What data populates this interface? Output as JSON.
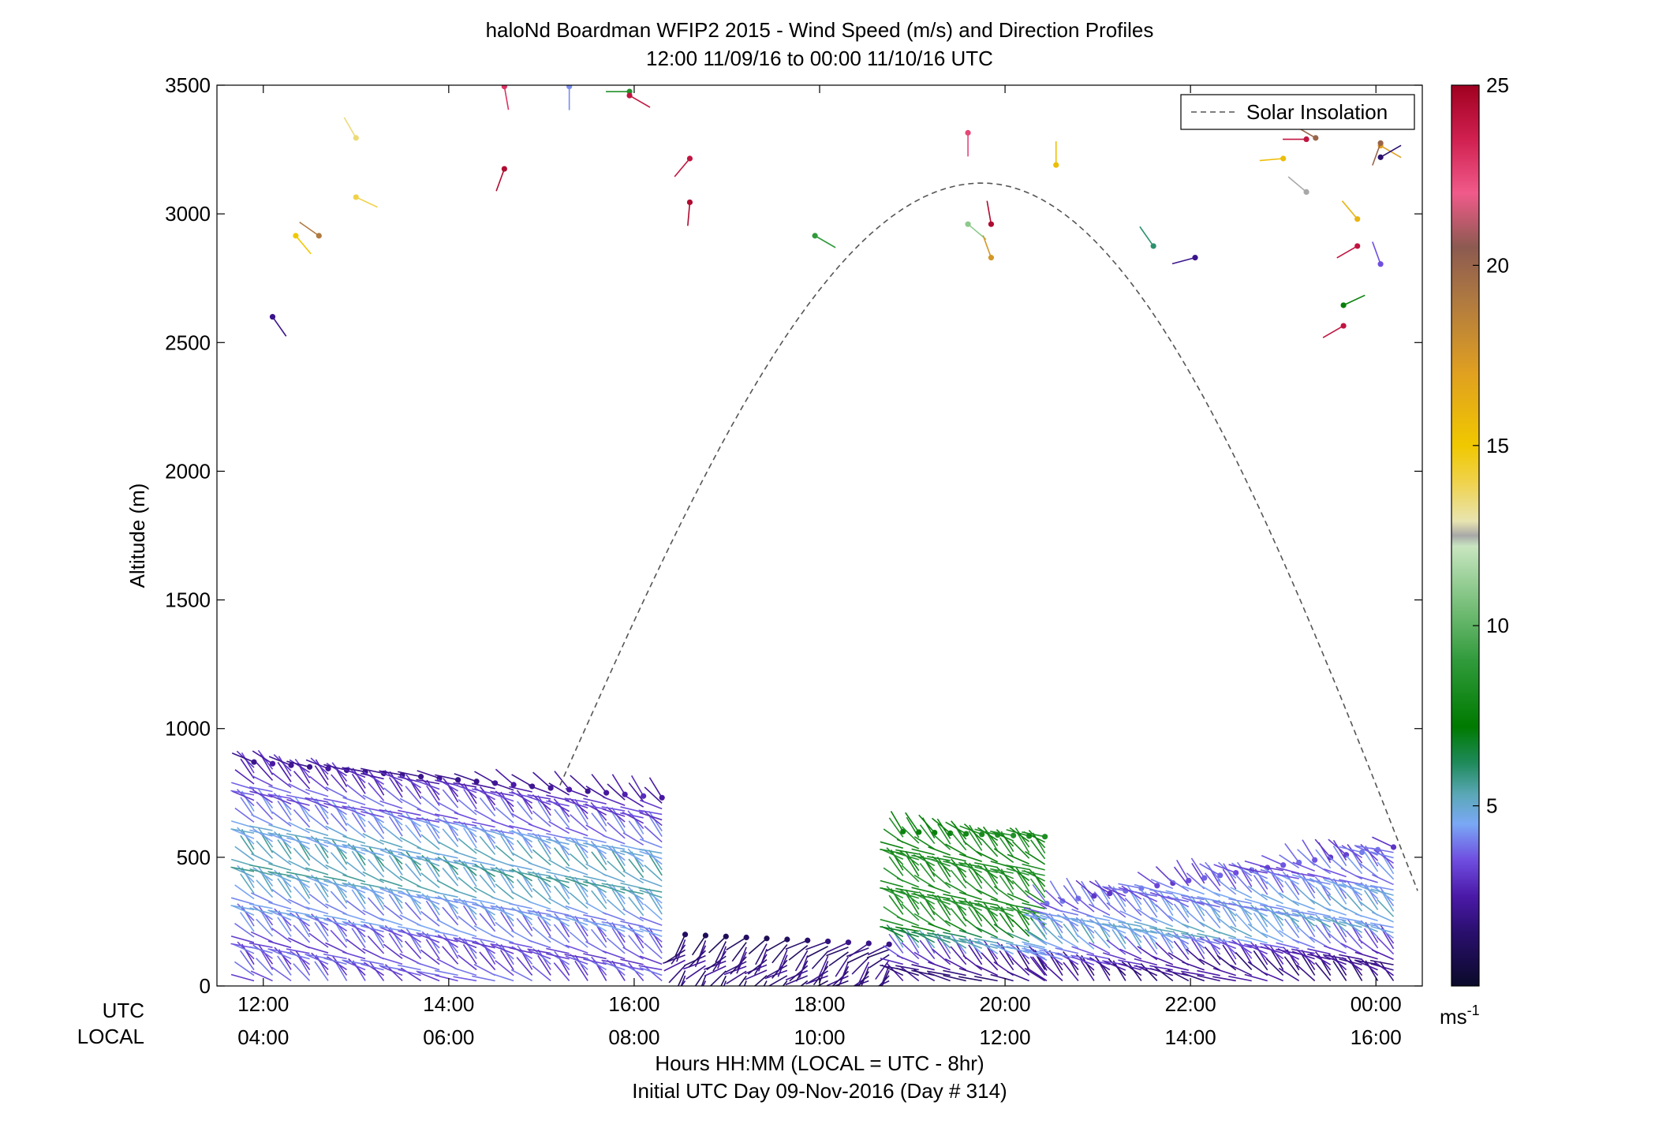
{
  "chart_data": {
    "type": "scatter",
    "title": "haloNd Boardman WFIP2 2015 - Wind Speed (m/s) and Direction Profiles",
    "subtitle": "12:00 11/09/16 to 00:00 11/10/16  UTC",
    "ylabel": "Altitude (m)",
    "xlabel": "Hours HH:MM  (LOCAL = UTC - 8hr)",
    "xlabel2": "Initial UTC Day 09-Nov-2016 (Day # 314)",
    "utc_row_label": "UTC",
    "local_row_label": "LOCAL",
    "xlim_hours": [
      11.5,
      24.5
    ],
    "ylim": [
      0,
      3500
    ],
    "yticks": [
      {
        "value": 0,
        "label": "0"
      },
      {
        "value": 500,
        "label": "500"
      },
      {
        "value": 1000,
        "label": "1000"
      },
      {
        "value": 1500,
        "label": "1500"
      },
      {
        "value": 2000,
        "label": "2000"
      },
      {
        "value": 2500,
        "label": "2500"
      },
      {
        "value": 3000,
        "label": "3000"
      },
      {
        "value": 3500,
        "label": "3500"
      }
    ],
    "xticks": [
      {
        "hour": 12,
        "utc": "12:00",
        "local": "04:00"
      },
      {
        "hour": 14,
        "utc": "14:00",
        "local": "06:00"
      },
      {
        "hour": 16,
        "utc": "16:00",
        "local": "08:00"
      },
      {
        "hour": 18,
        "utc": "18:00",
        "local": "10:00"
      },
      {
        "hour": 20,
        "utc": "20:00",
        "local": "12:00"
      },
      {
        "hour": 22,
        "utc": "22:00",
        "local": "14:00"
      },
      {
        "hour": 24,
        "utc": "00:00",
        "local": "16:00"
      }
    ],
    "legend": {
      "label": "Solar Insolation",
      "position": "top-right"
    },
    "solar_insolation_curve": {
      "start_hour": 15.2,
      "start_alt": 780,
      "peak_hour": 19.75,
      "peak_alt": 3120,
      "end_hour": 24.45,
      "end_alt": 370
    },
    "colorbar": {
      "min": 0,
      "max": 25,
      "ticks": [
        5,
        10,
        15,
        20,
        25
      ],
      "unit": "ms",
      "unit_sup": "-1",
      "stops": [
        {
          "v": 0,
          "c": "#0a0a2a"
        },
        {
          "v": 1.5,
          "c": "#2a0f6e"
        },
        {
          "v": 2.5,
          "c": "#4b19a8"
        },
        {
          "v": 3.5,
          "c": "#6f4ee0"
        },
        {
          "v": 4.5,
          "c": "#7aa8f5"
        },
        {
          "v": 5.3,
          "c": "#5ba8b8"
        },
        {
          "v": 6.2,
          "c": "#1e8a5a"
        },
        {
          "v": 7.2,
          "c": "#007a00"
        },
        {
          "v": 9,
          "c": "#2f9a3a"
        },
        {
          "v": 11,
          "c": "#8cc98c"
        },
        {
          "v": 12.2,
          "c": "#c8e6c0"
        },
        {
          "v": 12.5,
          "c": "#a8a8a8"
        },
        {
          "v": 12.9,
          "c": "#e8e4b0"
        },
        {
          "v": 14,
          "c": "#f0d24a"
        },
        {
          "v": 15,
          "c": "#f0c800"
        },
        {
          "v": 17,
          "c": "#e0a020"
        },
        {
          "v": 19,
          "c": "#b07a40"
        },
        {
          "v": 20.5,
          "c": "#8c5a50"
        },
        {
          "v": 22,
          "c": "#f05a8a"
        },
        {
          "v": 23.5,
          "c": "#d02050"
        },
        {
          "v": 25,
          "c": "#a00020"
        }
      ]
    },
    "profile_groups": [
      {
        "start": 11.9,
        "end": 16.35,
        "step": 0.2,
        "top_start": 870,
        "top_end": 730,
        "speed_low": 3.5,
        "speed_mid": 5.5,
        "speed_top": 2.5,
        "pivot": 0.55
      },
      {
        "start": 16.55,
        "end": 18.85,
        "step": 0.22,
        "top_start": 200,
        "top_end": 160,
        "speed_low": 1.5,
        "speed_mid": 2.0,
        "speed_top": 1.5,
        "pivot": 0.5
      },
      {
        "start": 18.9,
        "end": 20.45,
        "step": 0.17,
        "top_start": 600,
        "top_end": 580,
        "speed_low": 2.0,
        "speed_mid": 8.5,
        "speed_top": 8.0,
        "pivot": 0.4
      },
      {
        "start": 20.45,
        "end": 24.2,
        "step": 0.17,
        "top_start": 320,
        "top_end": 540,
        "speed_low": 2.0,
        "speed_mid": 5.0,
        "speed_top": 3.5,
        "pivot": 0.45
      }
    ],
    "upper_barbs": [
      {
        "hour": 12.1,
        "alt": 2600,
        "speed": 2.0,
        "dir": 35
      },
      {
        "hour": 12.35,
        "alt": 2915,
        "speed": 15.0,
        "dir": 40
      },
      {
        "hour": 12.6,
        "alt": 2915,
        "speed": 19.0,
        "dir": 235
      },
      {
        "hour": 13.0,
        "alt": 3295,
        "speed": 13.5,
        "dir": 210
      },
      {
        "hour": 13.0,
        "alt": 3065,
        "speed": 14.0,
        "dir": 65
      },
      {
        "hour": 14.6,
        "alt": 3175,
        "speed": 24.5,
        "dir": 340
      },
      {
        "hour": 14.6,
        "alt": 3495,
        "speed": 23.0,
        "dir": 10
      },
      {
        "hour": 15.3,
        "alt": 3495,
        "speed": 4.2,
        "dir": 0
      },
      {
        "hour": 15.95,
        "alt": 3475,
        "speed": 8.5,
        "dir": 270
      },
      {
        "hour": 15.95,
        "alt": 3460,
        "speed": 24.0,
        "dir": 60
      },
      {
        "hour": 16.6,
        "alt": 3215,
        "speed": 24.0,
        "dir": 320
      },
      {
        "hour": 16.6,
        "alt": 3045,
        "speed": 24.5,
        "dir": 355
      },
      {
        "hour": 17.95,
        "alt": 2915,
        "speed": 9.0,
        "dir": 60
      },
      {
        "hour": 19.6,
        "alt": 3315,
        "speed": 22.5,
        "dir": 0
      },
      {
        "hour": 19.6,
        "alt": 2960,
        "speed": 11.0,
        "dir": 50
      },
      {
        "hour": 19.85,
        "alt": 2960,
        "speed": 24.5,
        "dir": 190
      },
      {
        "hour": 19.85,
        "alt": 2830,
        "speed": 17.5,
        "dir": 200
      },
      {
        "hour": 20.55,
        "alt": 3190,
        "speed": 15.5,
        "dir": 180
      },
      {
        "hour": 21.6,
        "alt": 2875,
        "speed": 6.0,
        "dir": 215
      },
      {
        "hour": 22.05,
        "alt": 2830,
        "speed": 2.0,
        "dir": 285
      },
      {
        "hour": 23.0,
        "alt": 3215,
        "speed": 15.5,
        "dir": 275
      },
      {
        "hour": 23.25,
        "alt": 3085,
        "speed": 12.5,
        "dir": 230
      },
      {
        "hour": 23.25,
        "alt": 3290,
        "speed": 24.0,
        "dir": 270
      },
      {
        "hour": 23.35,
        "alt": 3295,
        "speed": 20.0,
        "dir": 240
      },
      {
        "hour": 23.65,
        "alt": 2645,
        "speed": 7.5,
        "dir": 115
      },
      {
        "hour": 23.65,
        "alt": 2565,
        "speed": 24.0,
        "dir": 300
      },
      {
        "hour": 23.8,
        "alt": 2875,
        "speed": 24.0,
        "dir": 300
      },
      {
        "hour": 23.8,
        "alt": 2980,
        "speed": 16.0,
        "dir": 220
      },
      {
        "hour": 24.05,
        "alt": 3265,
        "speed": 17.0,
        "dir": 60
      },
      {
        "hour": 24.05,
        "alt": 3275,
        "speed": 20.0,
        "dir": 340
      },
      {
        "hour": 24.05,
        "alt": 3220,
        "speed": 1.5,
        "dir": 120
      },
      {
        "hour": 24.05,
        "alt": 2805,
        "speed": 3.5,
        "dir": 200
      }
    ]
  }
}
